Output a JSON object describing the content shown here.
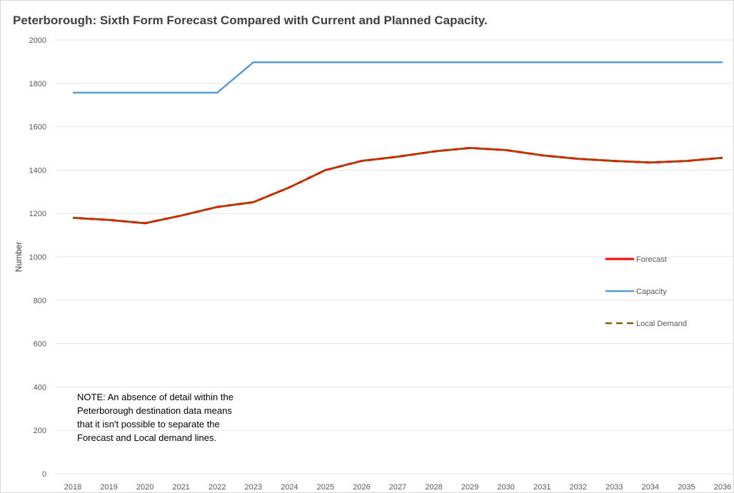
{
  "chart_data": {
    "type": "line",
    "title": "Peterborough: Sixth Form Forecast Compared with Current and Planned Capacity.",
    "xlabel": "",
    "ylabel": "Number",
    "x": [
      "2018",
      "2019",
      "2020",
      "2021",
      "2022",
      "2023",
      "2024",
      "2025",
      "2026",
      "2027",
      "2028",
      "2029",
      "2030",
      "2031",
      "2032",
      "2033",
      "2034",
      "2035",
      "2036"
    ],
    "ylim": [
      0,
      2000
    ],
    "yticks": [
      0,
      200,
      400,
      600,
      800,
      1000,
      1200,
      1400,
      1600,
      1800,
      2000
    ],
    "grid": true,
    "legend_position": "right",
    "series": [
      {
        "name": "Forecast",
        "color": "#ff0000",
        "style": "solid",
        "values": [
          1180,
          1170,
          1155,
          1190,
          1230,
          1252,
          1320,
          1400,
          1442,
          1462,
          1486,
          1502,
          1492,
          1468,
          1452,
          1442,
          1435,
          1442,
          1457
        ]
      },
      {
        "name": "Capacity",
        "color": "#5b9bd5",
        "style": "solid",
        "values": [
          1757,
          1757,
          1757,
          1757,
          1757,
          1897,
          1897,
          1897,
          1897,
          1897,
          1897,
          1897,
          1897,
          1897,
          1897,
          1897,
          1897,
          1897,
          1897
        ]
      },
      {
        "name": "Local Demand",
        "color": "#7f6000",
        "style": "dashed",
        "values": [
          1180,
          1170,
          1155,
          1190,
          1230,
          1252,
          1320,
          1400,
          1442,
          1462,
          1486,
          1502,
          1492,
          1468,
          1452,
          1442,
          1435,
          1442,
          1457
        ]
      }
    ]
  },
  "note": {
    "lines": [
      "NOTE: An absence of detail within the",
      "Peterborough destination data means",
      "that it isn't possible to separate the",
      "Forecast and Local demand lines."
    ]
  }
}
